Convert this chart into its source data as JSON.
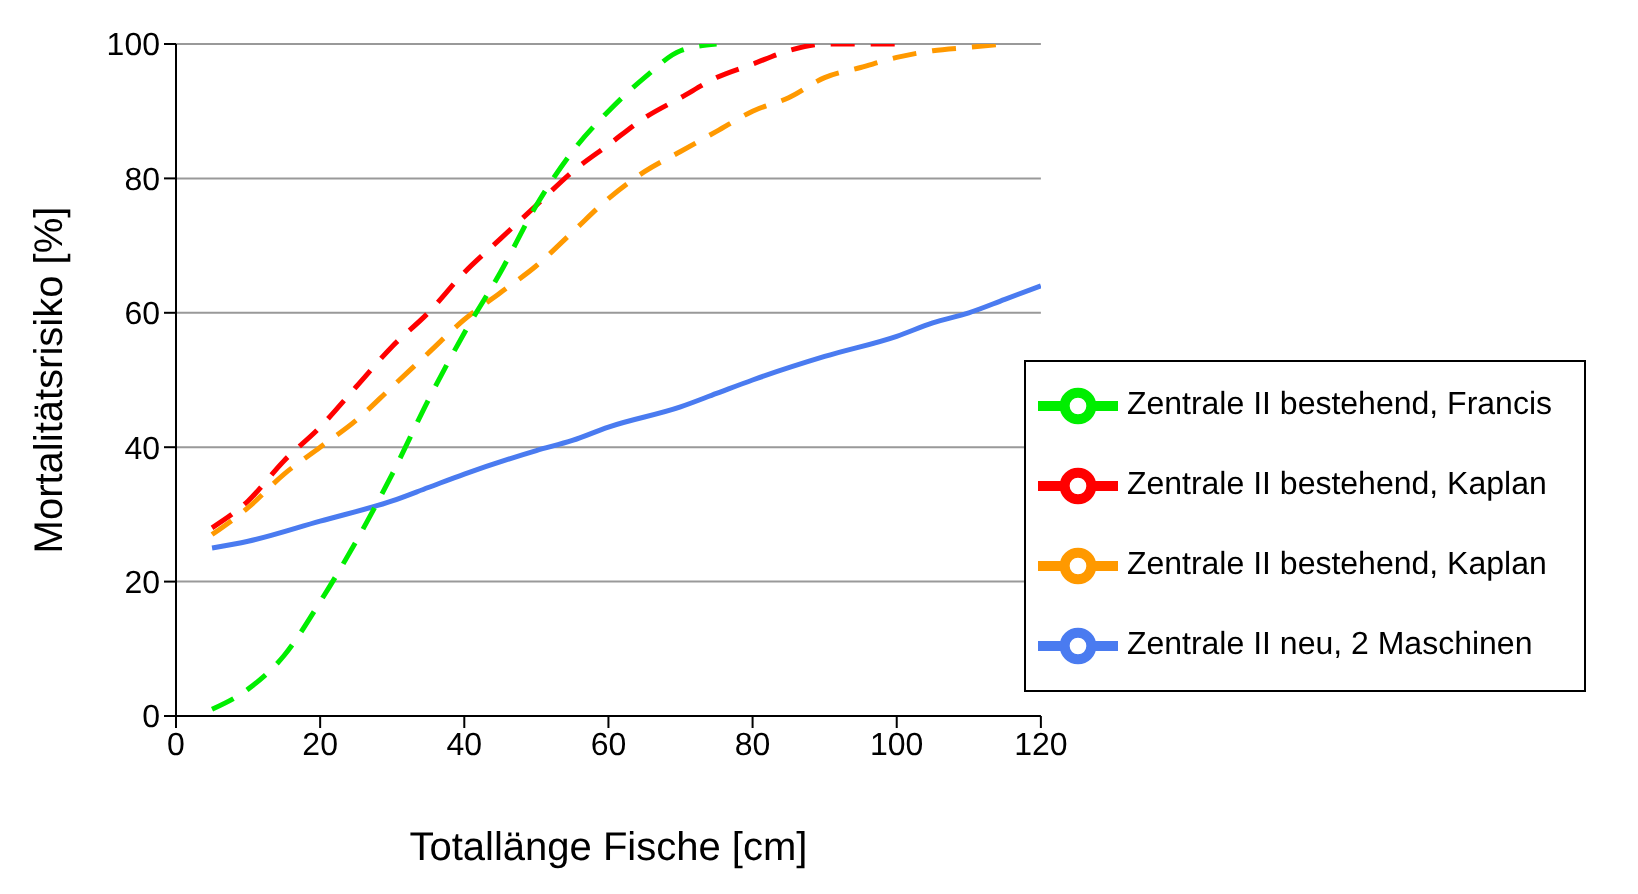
{
  "chart_data": {
    "type": "line",
    "xlabel": "Totallänge Fische [cm]",
    "ylabel": "Mortalitätsrisiko [%]",
    "xlim": [
      0,
      120
    ],
    "xticks": [
      0,
      20,
      40,
      60,
      80,
      100,
      120
    ],
    "ylim": [
      0,
      100
    ],
    "yticks": [
      0,
      20,
      40,
      60,
      80,
      100
    ],
    "grid": "y",
    "legend": "bottom right",
    "marker": "none",
    "series": [
      {
        "name": "Zentrale II neu, 2 Maschinen",
        "color": "#4a7bf0",
        "line_style": "solid",
        "x": [
          5,
          10,
          20,
          30,
          35,
          40,
          50,
          55,
          60,
          70,
          75,
          80,
          90,
          100,
          105,
          110,
          115,
          120
        ],
        "values": [
          25,
          26,
          29,
          32,
          34,
          36,
          39.5,
          41,
          43,
          46,
          48,
          50,
          53.5,
          56.5,
          58.5,
          60,
          62,
          64
        ]
      },
      {
        "name": "Zentrale II bestehend, Kaplan",
        "color": "#ff0000",
        "line_style": "dashed",
        "x": [
          5,
          10,
          15,
          20,
          25,
          30,
          35,
          40,
          45,
          50,
          55,
          60,
          65,
          70,
          75,
          80,
          85,
          90,
          95,
          100
        ],
        "values": [
          28,
          32,
          38,
          43,
          49,
          55,
          60,
          66,
          71,
          76,
          81,
          85,
          89,
          92,
          95,
          97,
          99,
          100,
          100,
          100
        ]
      },
      {
        "name": "Zentrale II bestehend, Kaplan",
        "color": "#ff9900",
        "line_style": "dashed",
        "x": [
          5,
          10,
          15,
          20,
          25,
          30,
          35,
          40,
          45,
          50,
          55,
          60,
          65,
          70,
          75,
          80,
          85,
          90,
          95,
          100,
          105,
          110,
          115
        ],
        "values": [
          27,
          31,
          36,
          40,
          44,
          49,
          54,
          59,
          63,
          67,
          72,
          77,
          81,
          84,
          87,
          90,
          92,
          95,
          96.5,
          98,
          99,
          99.5,
          100
        ]
      },
      {
        "name": "Zentrale II bestehend, Francis",
        "color": "#00ee00",
        "line_style": "dashed",
        "x": [
          5,
          10,
          15,
          20,
          25,
          30,
          35,
          40,
          45,
          50,
          55,
          60,
          65,
          70,
          75
        ],
        "values": [
          1,
          4,
          9,
          17,
          26,
          36,
          47,
          57,
          66,
          76,
          84,
          90,
          95,
          99,
          100
        ]
      }
    ]
  }
}
